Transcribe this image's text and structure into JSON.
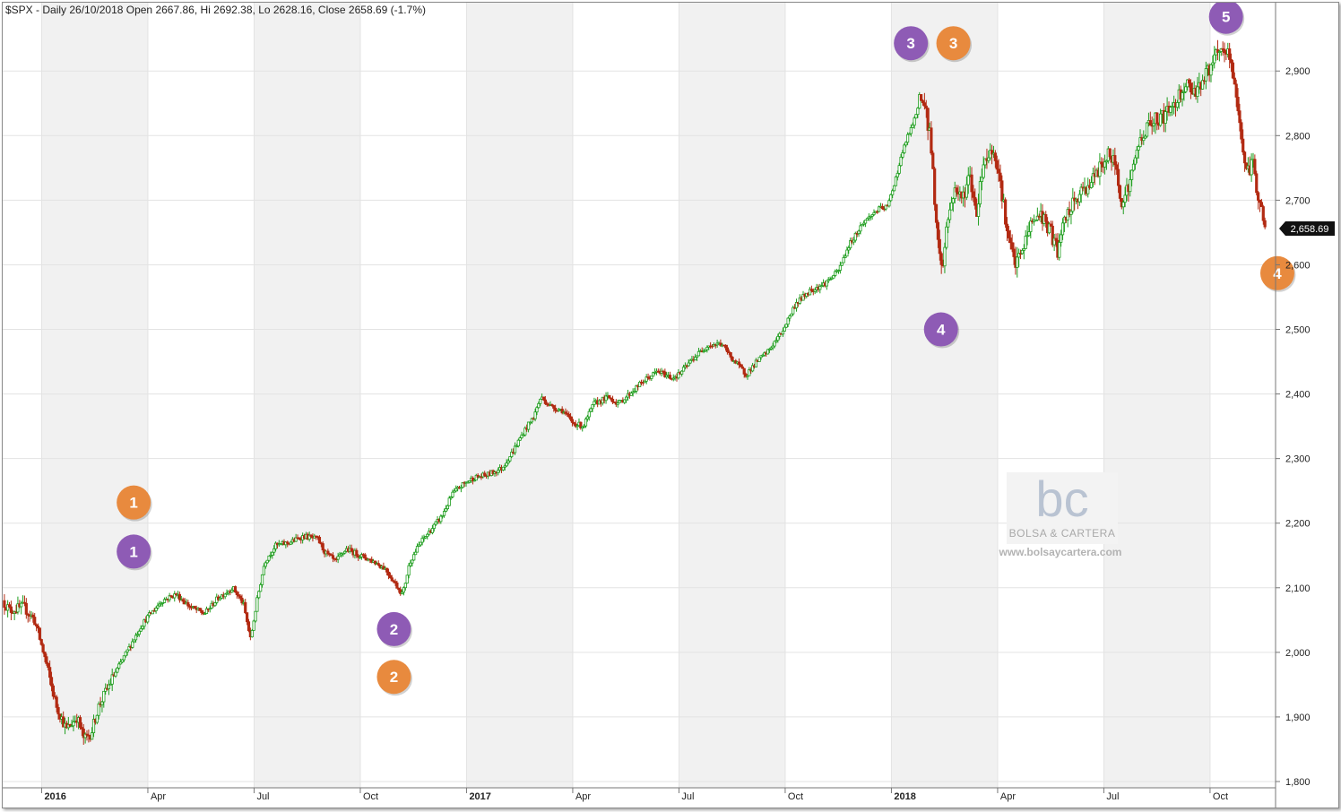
{
  "chart_data": {
    "type": "candlestick",
    "title": "$SPX - Daily 26/10/2018 Open 2667.86, Hi 2692.38, Lo 2628.16, Close 2658.69 (-1.7%)",
    "last_price_label": "2,658.69",
    "ylim": [
      1780,
      2950
    ],
    "y_ticks": [
      {
        "value": 1800,
        "label": "1,800"
      },
      {
        "value": 1900,
        "label": "1,900"
      },
      {
        "value": 2000,
        "label": "2,000"
      },
      {
        "value": 2100,
        "label": "2,100"
      },
      {
        "value": 2200,
        "label": "2,200"
      },
      {
        "value": 2300,
        "label": "2,300"
      },
      {
        "value": 2400,
        "label": "2,400"
      },
      {
        "value": 2500,
        "label": "2,500"
      },
      {
        "value": 2600,
        "label": "2,600"
      },
      {
        "value": 2700,
        "label": "2,700"
      },
      {
        "value": 2800,
        "label": "2,800"
      },
      {
        "value": 2900,
        "label": "2,900"
      }
    ],
    "x_ticks": [
      {
        "label": "2016",
        "bold": true,
        "t": 0
      },
      {
        "label": "Apr",
        "bold": false,
        "t": 3
      },
      {
        "label": "Jul",
        "bold": false,
        "t": 6
      },
      {
        "label": "Oct",
        "bold": false,
        "t": 9
      },
      {
        "label": "2017",
        "bold": true,
        "t": 12
      },
      {
        "label": "Apr",
        "bold": false,
        "t": 15
      },
      {
        "label": "Jul",
        "bold": false,
        "t": 18
      },
      {
        "label": "Oct",
        "bold": false,
        "t": 21
      },
      {
        "label": "2018",
        "bold": true,
        "t": 24
      },
      {
        "label": "Apr",
        "bold": false,
        "t": 27
      },
      {
        "label": "Jul",
        "bold": false,
        "t": 30
      },
      {
        "label": "Oct",
        "bold": false,
        "t": 33
      }
    ],
    "x_domain": [
      -1.1,
      34.85
    ],
    "colors": {
      "up": "#1f9e1f",
      "down": "#b22a12",
      "grid": "#e3e3e3",
      "band": "#f1f1f1",
      "purple": "#8e5bb5",
      "orange": "#e88a3e"
    },
    "price_path": [
      {
        "t": -1.1,
        "v": 2080
      },
      {
        "t": -0.9,
        "v": 2065
      },
      {
        "t": -0.5,
        "v": 2070
      },
      {
        "t": -0.2,
        "v": 2050
      },
      {
        "t": 0.1,
        "v": 1990
      },
      {
        "t": 0.4,
        "v": 1920
      },
      {
        "t": 0.7,
        "v": 1880
      },
      {
        "t": 1.0,
        "v": 1900
      },
      {
        "t": 1.2,
        "v": 1865
      },
      {
        "t": 1.4,
        "v": 1875
      },
      {
        "t": 1.6,
        "v": 1915
      },
      {
        "t": 2.0,
        "v": 1960
      },
      {
        "t": 2.4,
        "v": 2000
      },
      {
        "t": 2.8,
        "v": 2040
      },
      {
        "t": 3.0,
        "v": 2055
      },
      {
        "t": 3.4,
        "v": 2080
      },
      {
        "t": 3.8,
        "v": 2090
      },
      {
        "t": 4.2,
        "v": 2070
      },
      {
        "t": 4.6,
        "v": 2060
      },
      {
        "t": 5.0,
        "v": 2085
      },
      {
        "t": 5.4,
        "v": 2100
      },
      {
        "t": 5.7,
        "v": 2075
      },
      {
        "t": 5.9,
        "v": 2020
      },
      {
        "t": 6.1,
        "v": 2085
      },
      {
        "t": 6.3,
        "v": 2140
      },
      {
        "t": 6.6,
        "v": 2165
      },
      {
        "t": 7.0,
        "v": 2170
      },
      {
        "t": 7.4,
        "v": 2180
      },
      {
        "t": 7.8,
        "v": 2175
      },
      {
        "t": 8.0,
        "v": 2155
      },
      {
        "t": 8.3,
        "v": 2140
      },
      {
        "t": 8.6,
        "v": 2160
      },
      {
        "t": 9.0,
        "v": 2150
      },
      {
        "t": 9.4,
        "v": 2140
      },
      {
        "t": 9.7,
        "v": 2130
      },
      {
        "t": 10.0,
        "v": 2105
      },
      {
        "t": 10.2,
        "v": 2090
      },
      {
        "t": 10.4,
        "v": 2140
      },
      {
        "t": 10.7,
        "v": 2170
      },
      {
        "t": 11.0,
        "v": 2190
      },
      {
        "t": 11.3,
        "v": 2210
      },
      {
        "t": 11.6,
        "v": 2245
      },
      {
        "t": 11.9,
        "v": 2260
      },
      {
        "t": 12.2,
        "v": 2270
      },
      {
        "t": 12.6,
        "v": 2275
      },
      {
        "t": 13.0,
        "v": 2285
      },
      {
        "t": 13.3,
        "v": 2310
      },
      {
        "t": 13.6,
        "v": 2340
      },
      {
        "t": 13.9,
        "v": 2365
      },
      {
        "t": 14.1,
        "v": 2395
      },
      {
        "t": 14.4,
        "v": 2380
      },
      {
        "t": 14.7,
        "v": 2375
      },
      {
        "t": 15.0,
        "v": 2355
      },
      {
        "t": 15.3,
        "v": 2350
      },
      {
        "t": 15.6,
        "v": 2385
      },
      {
        "t": 16.0,
        "v": 2395
      },
      {
        "t": 16.3,
        "v": 2385
      },
      {
        "t": 16.6,
        "v": 2400
      },
      {
        "t": 17.0,
        "v": 2420
      },
      {
        "t": 17.4,
        "v": 2435
      },
      {
        "t": 17.8,
        "v": 2425
      },
      {
        "t": 18.0,
        "v": 2430
      },
      {
        "t": 18.4,
        "v": 2455
      },
      {
        "t": 18.8,
        "v": 2475
      },
      {
        "t": 19.2,
        "v": 2478
      },
      {
        "t": 19.5,
        "v": 2455
      },
      {
        "t": 19.9,
        "v": 2430
      },
      {
        "t": 20.2,
        "v": 2450
      },
      {
        "t": 20.5,
        "v": 2465
      },
      {
        "t": 20.9,
        "v": 2495
      },
      {
        "t": 21.3,
        "v": 2540
      },
      {
        "t": 21.7,
        "v": 2560
      },
      {
        "t": 22.1,
        "v": 2570
      },
      {
        "t": 22.5,
        "v": 2590
      },
      {
        "t": 22.8,
        "v": 2630
      },
      {
        "t": 23.2,
        "v": 2665
      },
      {
        "t": 23.6,
        "v": 2685
      },
      {
        "t": 23.9,
        "v": 2690
      },
      {
        "t": 24.1,
        "v": 2730
      },
      {
        "t": 24.4,
        "v": 2790
      },
      {
        "t": 24.7,
        "v": 2830
      },
      {
        "t": 24.8,
        "v": 2865
      },
      {
        "t": 24.95,
        "v": 2840
      },
      {
        "t": 25.1,
        "v": 2800
      },
      {
        "t": 25.3,
        "v": 2640
      },
      {
        "t": 25.45,
        "v": 2590
      },
      {
        "t": 25.55,
        "v": 2660
      },
      {
        "t": 25.8,
        "v": 2720
      },
      {
        "t": 26.0,
        "v": 2700
      },
      {
        "t": 26.2,
        "v": 2740
      },
      {
        "t": 26.4,
        "v": 2680
      },
      {
        "t": 26.6,
        "v": 2760
      },
      {
        "t": 26.9,
        "v": 2780
      },
      {
        "t": 27.1,
        "v": 2720
      },
      {
        "t": 27.3,
        "v": 2640
      },
      {
        "t": 27.5,
        "v": 2600
      },
      {
        "t": 27.7,
        "v": 2620
      },
      {
        "t": 27.9,
        "v": 2660
      },
      {
        "t": 28.2,
        "v": 2680
      },
      {
        "t": 28.5,
        "v": 2650
      },
      {
        "t": 28.7,
        "v": 2620
      },
      {
        "t": 28.9,
        "v": 2670
      },
      {
        "t": 29.2,
        "v": 2700
      },
      {
        "t": 29.5,
        "v": 2720
      },
      {
        "t": 29.8,
        "v": 2740
      },
      {
        "t": 30.1,
        "v": 2770
      },
      {
        "t": 30.3,
        "v": 2760
      },
      {
        "t": 30.5,
        "v": 2700
      },
      {
        "t": 30.7,
        "v": 2720
      },
      {
        "t": 31.0,
        "v": 2790
      },
      {
        "t": 31.3,
        "v": 2820
      },
      {
        "t": 31.7,
        "v": 2830
      },
      {
        "t": 32.0,
        "v": 2850
      },
      {
        "t": 32.3,
        "v": 2880
      },
      {
        "t": 32.6,
        "v": 2870
      },
      {
        "t": 32.9,
        "v": 2895
      },
      {
        "t": 33.2,
        "v": 2925
      },
      {
        "t": 33.5,
        "v": 2930
      },
      {
        "t": 33.7,
        "v": 2880
      },
      {
        "t": 33.9,
        "v": 2790
      },
      {
        "t": 34.05,
        "v": 2740
      },
      {
        "t": 34.2,
        "v": 2760
      },
      {
        "t": 34.35,
        "v": 2710
      },
      {
        "t": 34.5,
        "v": 2670
      },
      {
        "t": 34.55,
        "v": 2659
      }
    ],
    "annotations": [
      {
        "label": "1",
        "color": "orange",
        "t": 2.6,
        "v": 2232
      },
      {
        "label": "1",
        "color": "purple",
        "t": 2.6,
        "v": 2156
      },
      {
        "label": "2",
        "color": "purple",
        "t": 9.95,
        "v": 2036
      },
      {
        "label": "2",
        "color": "orange",
        "t": 9.95,
        "v": 1962
      },
      {
        "label": "3",
        "color": "purple",
        "t": 24.55,
        "v": 2943
      },
      {
        "label": "3",
        "color": "orange",
        "t": 25.75,
        "v": 2943
      },
      {
        "label": "4",
        "color": "purple",
        "t": 25.4,
        "v": 2500
      },
      {
        "label": "5",
        "color": "purple",
        "t": 33.45,
        "v": 2984
      },
      {
        "label": "4",
        "color": "orange",
        "t": 34.9,
        "v": 2587
      }
    ]
  },
  "watermark": {
    "logo_text": "bc",
    "name": "BOLSA & CARTERA",
    "url": "www.bolsaycartera.com"
  }
}
